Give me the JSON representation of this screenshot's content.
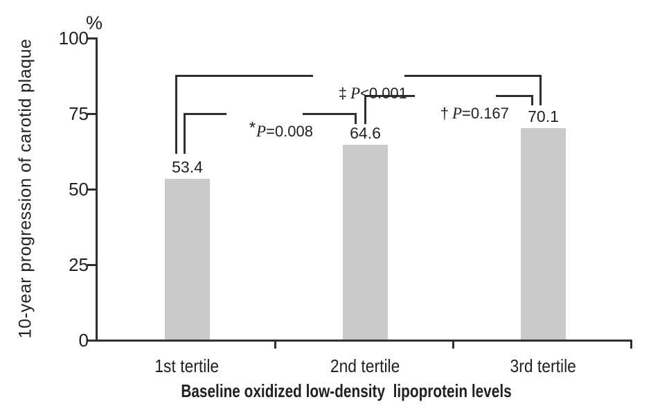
{
  "figure": {
    "background": "#ffffff",
    "line_color": "#332e2e",
    "text_color": "#231f20",
    "bar_color": "#c9c9c9"
  },
  "chart_data": {
    "type": "bar",
    "title": "",
    "categories": [
      "1st tertile",
      "2nd tertile",
      "3rd tertile"
    ],
    "values": [
      53.4,
      64.6,
      70.1
    ],
    "value_labels": [
      "53.4",
      "64.6",
      "70.1"
    ],
    "xlabel": "Baseline oxidized low-density  lipoprotein levels",
    "ylabel": "10-year progression of carotid plaque",
    "y_unit": "%",
    "ylim": [
      0,
      100
    ],
    "yticks": [
      "100",
      "75",
      "50",
      "25",
      "0"
    ],
    "ytick_values": [
      100,
      75,
      50,
      25,
      0
    ],
    "grid": false,
    "legend_position": "none",
    "bar_fill": "#c9c9c9",
    "annotations": [
      {
        "symbol": "*",
        "p": "P",
        "value": "=0.008",
        "compares": "1st tertile vs 2nd tertile"
      },
      {
        "symbol": "†",
        "p": "P",
        "value": "=0.167",
        "compares": "2nd tertile vs 3rd tertile"
      },
      {
        "symbol": "‡",
        "p": "P",
        "value": "<0.001",
        "compares": "1st tertile vs 3rd tertile"
      }
    ]
  }
}
